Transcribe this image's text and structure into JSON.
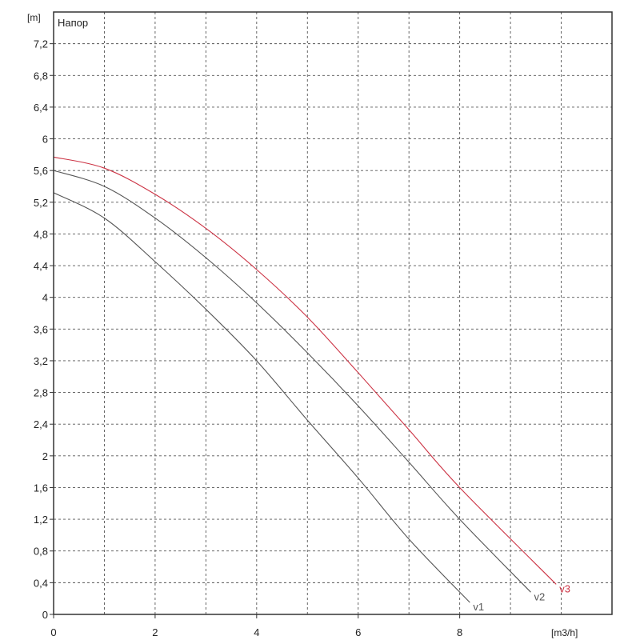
{
  "chart_data": {
    "type": "line",
    "title": "Напор",
    "xlabel": "[m3/h]",
    "ylabel": "[m]",
    "xlim": [
      0,
      11
    ],
    "ylim": [
      0,
      7.6
    ],
    "x_ticks": [
      0,
      2,
      4,
      6,
      8
    ],
    "x_tick_labels": [
      "0",
      "2",
      "4",
      "6",
      "8"
    ],
    "y_ticks": [
      0,
      0.4,
      0.8,
      1.2,
      1.6,
      2,
      2.4,
      2.8,
      3.2,
      3.6,
      4,
      4.4,
      4.8,
      5.2,
      5.6,
      6,
      6.4,
      6.8,
      7.2
    ],
    "y_tick_labels": [
      "0",
      "0,4",
      "0,8",
      "1,2",
      "1,6",
      "2",
      "2,4",
      "2,8",
      "3,2",
      "3,6",
      "4",
      "4,4",
      "4,8",
      "5,2",
      "5,6",
      "6",
      "6,4",
      "6,8",
      "7,2"
    ],
    "grid": true,
    "series": [
      {
        "name": "v1",
        "color": "#555555",
        "x": [
          0,
          1,
          2,
          3,
          4,
          5,
          6,
          7,
          8.2
        ],
        "y": [
          5.32,
          5.0,
          4.45,
          3.85,
          3.2,
          2.45,
          1.72,
          0.95,
          0.15
        ]
      },
      {
        "name": "v2",
        "color": "#555555",
        "x": [
          0,
          1,
          2,
          3,
          4,
          5,
          6,
          7,
          8,
          9.4
        ],
        "y": [
          5.6,
          5.4,
          5.0,
          4.5,
          3.93,
          3.3,
          2.63,
          1.92,
          1.2,
          0.28
        ]
      },
      {
        "name": "v3",
        "color": "#cc3344",
        "x": [
          0,
          1,
          2,
          3,
          4,
          5,
          6,
          7,
          8,
          9.9
        ],
        "y": [
          5.77,
          5.63,
          5.3,
          4.87,
          4.35,
          3.75,
          3.05,
          2.33,
          1.6,
          0.38
        ]
      }
    ]
  }
}
